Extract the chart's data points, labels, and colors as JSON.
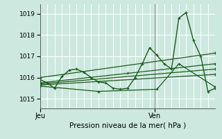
{
  "xlabel": "Pression niveau de la mer( hPa )",
  "ylim": [
    1014.55,
    1019.45
  ],
  "yticks": [
    1015,
    1016,
    1017,
    1018,
    1019
  ],
  "bg_color": "#cce8df",
  "grid_color": "#ffffff",
  "line_color": "#1a5c1a",
  "marker_color": "#1a5c1a",
  "tick_labels_x": [
    "Jeu",
    "Ven"
  ],
  "vline_color": "#888888",
  "series": [
    {
      "x": [
        0.0,
        0.042,
        0.083,
        0.125,
        0.167,
        0.208,
        0.25,
        0.292,
        0.333,
        0.375,
        0.417,
        0.458,
        0.5,
        0.542,
        0.583,
        0.625,
        0.667,
        0.708,
        0.75,
        0.792,
        0.833,
        0.875,
        0.917,
        0.958,
        1.0
      ],
      "y": [
        1015.9,
        1015.75,
        1015.5,
        1016.05,
        1016.35,
        1016.4,
        1016.25,
        1016.0,
        1015.8,
        1015.75,
        1015.5,
        1015.45,
        1015.5,
        1016.0,
        1016.65,
        1017.4,
        1017.05,
        1016.65,
        1016.4,
        1018.8,
        1019.05,
        1017.75,
        1017.0,
        1015.35,
        1015.5
      ],
      "lw": 1.0,
      "ms": 3.5
    },
    {
      "x": [
        0.0,
        1.0
      ],
      "y": [
        1016.0,
        1017.15
      ],
      "lw": 0.9,
      "ms": 3.0
    },
    {
      "x": [
        0.0,
        0.5,
        1.0
      ],
      "y": [
        1015.75,
        1016.2,
        1016.65
      ],
      "lw": 0.9,
      "ms": 3.0
    },
    {
      "x": [
        0.0,
        1.0
      ],
      "y": [
        1015.7,
        1016.4
      ],
      "lw": 0.9,
      "ms": 3.0
    },
    {
      "x": [
        0.0,
        1.0
      ],
      "y": [
        1015.65,
        1016.15
      ],
      "lw": 0.9,
      "ms": 3.0
    },
    {
      "x": [
        0.0,
        0.333,
        0.667,
        0.792,
        1.0
      ],
      "y": [
        1015.6,
        1015.35,
        1015.45,
        1016.65,
        1015.55
      ],
      "lw": 0.9,
      "ms": 3.0
    }
  ],
  "vline_x": 0.655
}
